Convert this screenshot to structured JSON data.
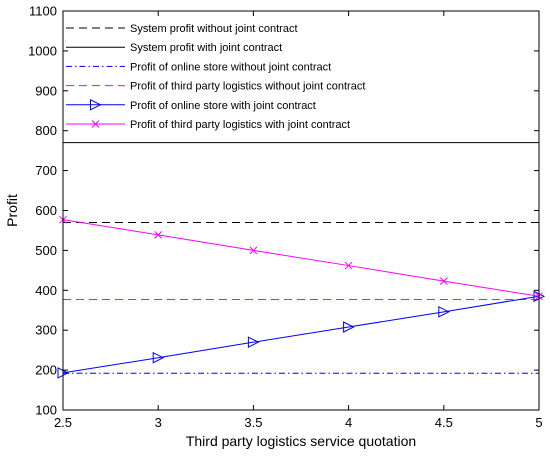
{
  "chart_data": {
    "type": "line",
    "xlabel": "Third party logistics service quotation",
    "ylabel": "Profit",
    "xlim": [
      2.5,
      5
    ],
    "ylim": [
      100,
      1100
    ],
    "x_ticks": [
      "2.5",
      "3",
      "3.5",
      "4",
      "4.5",
      "5"
    ],
    "y_ticks": [
      "100",
      "200",
      "300",
      "400",
      "500",
      "600",
      "700",
      "800",
      "900",
      "1000",
      "1100"
    ],
    "x": [
      2.5,
      3,
      3.5,
      4,
      4.5,
      5
    ],
    "legend_placement": "top-left",
    "grid": false,
    "series": [
      {
        "name": "System profit without joint contract",
        "values": [
          570,
          570,
          570,
          570,
          570,
          570
        ],
        "color": "#000000",
        "dash": "dashed",
        "marker": "none"
      },
      {
        "name": "System profit with joint contract",
        "values": [
          770,
          770,
          770,
          770,
          770,
          770
        ],
        "color": "#000000",
        "dash": "solid",
        "marker": "none"
      },
      {
        "name": "Profit of online store without joint contract",
        "values": [
          192,
          192,
          192,
          192,
          192,
          192
        ],
        "color": "#0000ff",
        "dash": "dashdot",
        "marker": "none"
      },
      {
        "name": "Profit of third party logistics without joint contract",
        "values": [
          377,
          377,
          377,
          377,
          377,
          377
        ],
        "color": "#ff00ff",
        "dash": "dashed",
        "marker": "none"
      },
      {
        "name": "Profit of online store with joint contract",
        "values": [
          193,
          231,
          270,
          308,
          346,
          385
        ],
        "color": "#0000ff",
        "dash": "solid",
        "marker": "triangle-right"
      },
      {
        "name": "Profit of third party logistics with joint contract",
        "values": [
          577,
          539,
          500,
          462,
          423,
          385
        ],
        "color": "#ff00ff",
        "dash": "solid",
        "marker": "x"
      }
    ]
  }
}
